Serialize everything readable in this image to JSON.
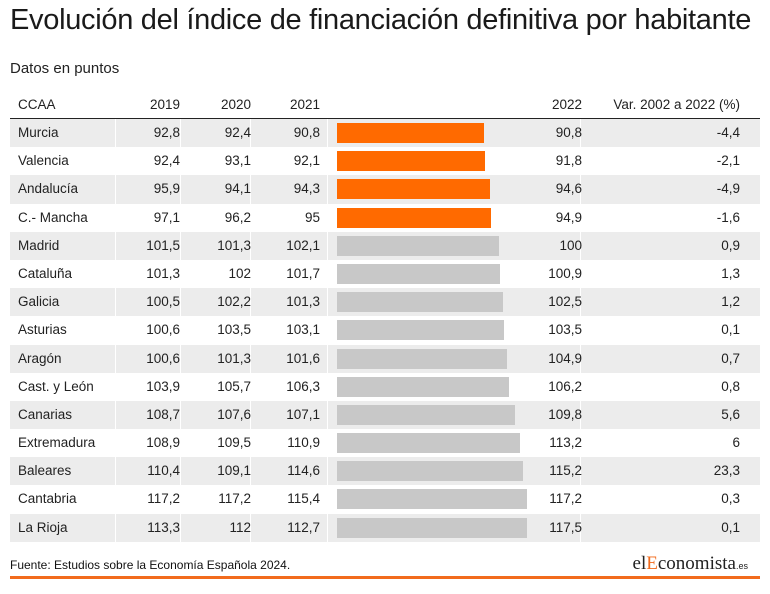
{
  "title": "Evolución del índice de financiación definitiva por habitante",
  "subtitle": "Datos en puntos",
  "headers": {
    "ccaa": "CCAA",
    "y2019": "2019",
    "y2020": "2020",
    "y2021": "2021",
    "y2022": "2022",
    "var": "Var. 2002 a 2022 (%)"
  },
  "footer": {
    "source": "Fuente: Estudios sobre la Economía Española 2024.",
    "logo_el": "el",
    "logo_e": "E",
    "logo_rest": "conomista",
    "logo_es": ".es"
  },
  "colors": {
    "highlight": "#ff6a00",
    "normal": "#c8c8c8",
    "accent": "#f26b1d"
  },
  "chart_data": {
    "type": "table",
    "bar_series": "2022",
    "highlighted": [
      "Murcia",
      "Valencia",
      "Andalucía",
      "C.- Mancha"
    ],
    "rows": [
      {
        "ccaa": "Murcia",
        "y2019": "92,8",
        "y2020": "92,4",
        "y2021": "90,8",
        "y2022": "90,8",
        "value_2022": 90.8,
        "var": "-4,4"
      },
      {
        "ccaa": "Valencia",
        "y2019": "92,4",
        "y2020": "93,1",
        "y2021": "92,1",
        "y2022": "91,8",
        "value_2022": 91.8,
        "var": "-2,1"
      },
      {
        "ccaa": "Andalucía",
        "y2019": "95,9",
        "y2020": "94,1",
        "y2021": "94,3",
        "y2022": "94,6",
        "value_2022": 94.6,
        "var": "-4,9"
      },
      {
        "ccaa": "C.- Mancha",
        "y2019": "97,1",
        "y2020": "96,2",
        "y2021": "95",
        "y2022": "94,9",
        "value_2022": 94.9,
        "var": "-1,6"
      },
      {
        "ccaa": "Madrid",
        "y2019": "101,5",
        "y2020": "101,3",
        "y2021": "102,1",
        "y2022": "100",
        "value_2022": 100,
        "var": "0,9"
      },
      {
        "ccaa": "Cataluña",
        "y2019": "101,3",
        "y2020": "102",
        "y2021": "101,7",
        "y2022": "100,9",
        "value_2022": 100.9,
        "var": "1,3"
      },
      {
        "ccaa": "Galicia",
        "y2019": "100,5",
        "y2020": "102,2",
        "y2021": "101,3",
        "y2022": "102,5",
        "value_2022": 102.5,
        "var": "1,2"
      },
      {
        "ccaa": "Asturias",
        "y2019": "100,6",
        "y2020": "103,5",
        "y2021": "103,1",
        "y2022": "103,5",
        "value_2022": 103.5,
        "var": "0,1"
      },
      {
        "ccaa": "Aragón",
        "y2019": "100,6",
        "y2020": "101,3",
        "y2021": "101,6",
        "y2022": "104,9",
        "value_2022": 104.9,
        "var": "0,7"
      },
      {
        "ccaa": "Cast. y León",
        "y2019": "103,9",
        "y2020": "105,7",
        "y2021": "106,3",
        "y2022": "106,2",
        "value_2022": 106.2,
        "var": "0,8"
      },
      {
        "ccaa": "Canarias",
        "y2019": "108,7",
        "y2020": "107,6",
        "y2021": "107,1",
        "y2022": "109,8",
        "value_2022": 109.8,
        "var": "5,6"
      },
      {
        "ccaa": "Extremadura",
        "y2019": "108,9",
        "y2020": "109,5",
        "y2021": "110,9",
        "y2022": "113,2",
        "value_2022": 113.2,
        "var": "6"
      },
      {
        "ccaa": "Baleares",
        "y2019": "110,4",
        "y2020": "109,1",
        "y2021": "114,6",
        "y2022": "115,2",
        "value_2022": 115.2,
        "var": "23,3"
      },
      {
        "ccaa": "Cantabria",
        "y2019": "117,2",
        "y2020": "117,2",
        "y2021": "115,4",
        "y2022": "117,2",
        "value_2022": 117.2,
        "var": "0,3"
      },
      {
        "ccaa": "La Rioja",
        "y2019": "113,3",
        "y2020": "112",
        "y2021": "112,7",
        "y2022": "117,5",
        "value_2022": 117.5,
        "var": "0,1"
      }
    ]
  }
}
